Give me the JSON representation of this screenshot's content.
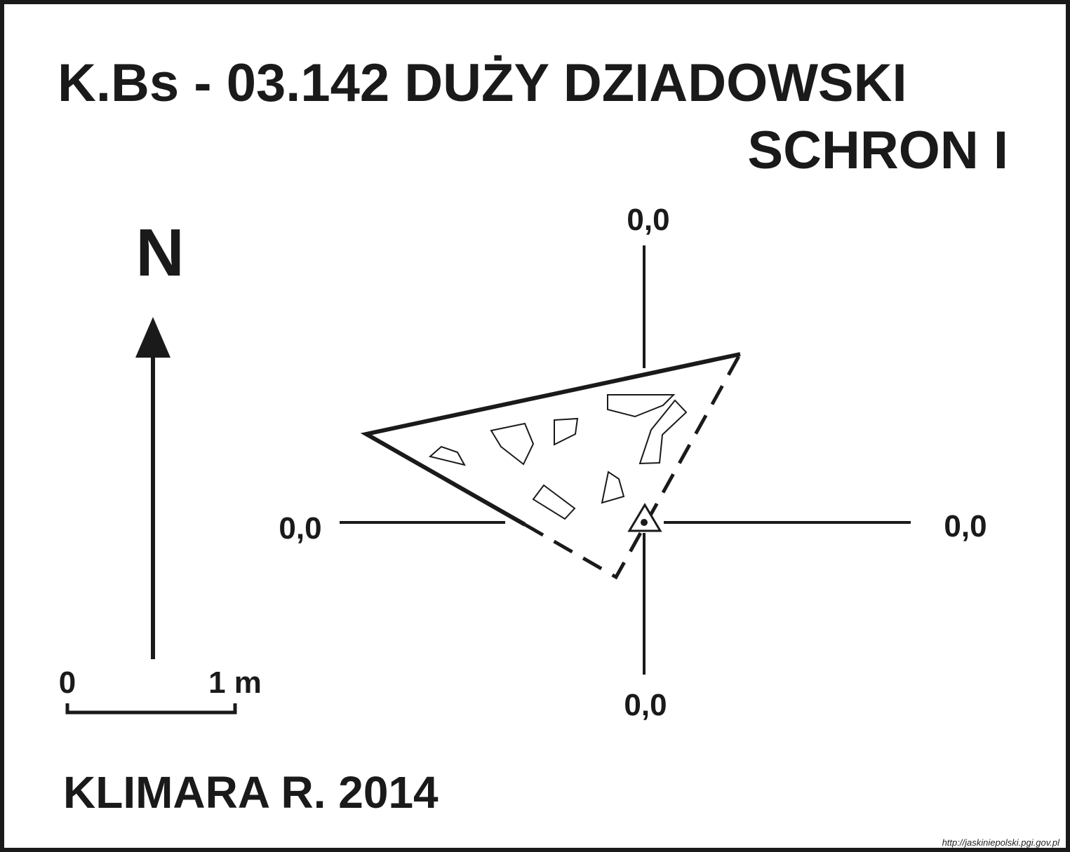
{
  "title": {
    "line1": "K.Bs - 03.142  DUŻY DZIADOWSKI",
    "line2": "SCHRON I"
  },
  "north_label": "N",
  "scale_bar": {
    "start_label": "0",
    "end_label": "1 m"
  },
  "axis_labels": {
    "top": "0,0",
    "left": "0,0",
    "right": "0,0",
    "bottom": "0,0"
  },
  "author": "KLIMARA R. 2014",
  "source_url": "http://jaskiniepolski.pgi.gov.pl",
  "colors": {
    "ink": "#1a1a1a",
    "background": "#ffffff"
  }
}
